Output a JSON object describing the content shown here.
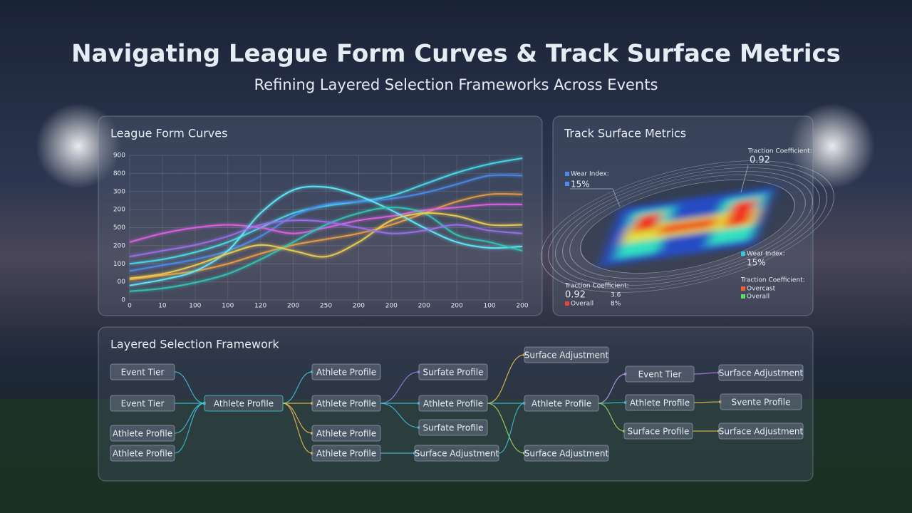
{
  "header": {
    "title": "Navigating League Form Curves & Track Surface Metrics",
    "subtitle": "Refining Layered Selection Frameworks Across Events"
  },
  "chart_data": {
    "type": "line",
    "title": "League Form Curves",
    "categories": [
      "0",
      "10",
      "100",
      "100",
      "120",
      "200",
      "250",
      "200",
      "200",
      "200",
      "200",
      "100",
      "200"
    ],
    "y_axis_labels": [
      "900",
      "800",
      "300",
      "200",
      "500",
      "200",
      "100",
      "00",
      "0"
    ],
    "ylim": [
      0,
      100
    ],
    "grid": true,
    "series": [
      {
        "color": "#46e0f0",
        "values": [
          25,
          28,
          33,
          40,
          50,
          60,
          65,
          68,
          72,
          80,
          88,
          94,
          98
        ]
      },
      {
        "color": "#4a8cf0",
        "values": [
          20,
          24,
          28,
          34,
          44,
          58,
          66,
          68,
          70,
          74,
          80,
          86,
          86
        ]
      },
      {
        "color": "#f0a040",
        "values": [
          14,
          17,
          20,
          25,
          32,
          38,
          42,
          46,
          52,
          60,
          68,
          73,
          73
        ]
      },
      {
        "color": "#e060e8",
        "values": [
          40,
          46,
          50,
          52,
          50,
          46,
          50,
          55,
          58,
          62,
          64,
          66,
          66
        ]
      },
      {
        "color": "#5ef0ff",
        "values": [
          10,
          14,
          20,
          34,
          60,
          76,
          78,
          72,
          62,
          50,
          40,
          36,
          37
        ]
      },
      {
        "color": "#30c8b8",
        "values": [
          6,
          8,
          12,
          18,
          28,
          40,
          52,
          60,
          64,
          60,
          45,
          40,
          34
        ]
      },
      {
        "color": "#f0d050",
        "values": [
          15,
          18,
          24,
          32,
          38,
          34,
          30,
          40,
          55,
          60,
          58,
          52,
          52
        ]
      },
      {
        "color": "#9a70f0",
        "values": [
          30,
          34,
          38,
          44,
          52,
          55,
          54,
          50,
          46,
          48,
          52,
          48,
          46
        ]
      }
    ]
  },
  "track": {
    "title": "Track Surface Metrics",
    "annotations": [
      "Traction Coefficient:",
      "0.92",
      "Wear Index:",
      "15%",
      "Wear Index:",
      "15%",
      "Traction Coefficient:",
      "Overcast",
      "Overall",
      "Traction Coefficient:",
      "0.92",
      "3.6",
      "Overall",
      "8%"
    ]
  },
  "framework": {
    "title": "Layered Selection Framework",
    "nodes": [
      "Event Tier",
      "Event Tier",
      "Athlete Profile",
      "Athlete Profile",
      "Athlete Profile",
      "Athlete Profile",
      "Athlete Profile",
      "Athlete Profile",
      "Athlete Profile",
      "Surfate Profile",
      "Athlete Profile",
      "Surfate Profile",
      "Surface Adjustment",
      "Surface Adjustment",
      "Athlete Profile",
      "Surface Adjustment",
      "Event Tier",
      "Athlete Profile",
      "Surface Profile",
      "Surface Adjustment",
      "Svente Profile",
      "Surface Adjustment"
    ]
  }
}
